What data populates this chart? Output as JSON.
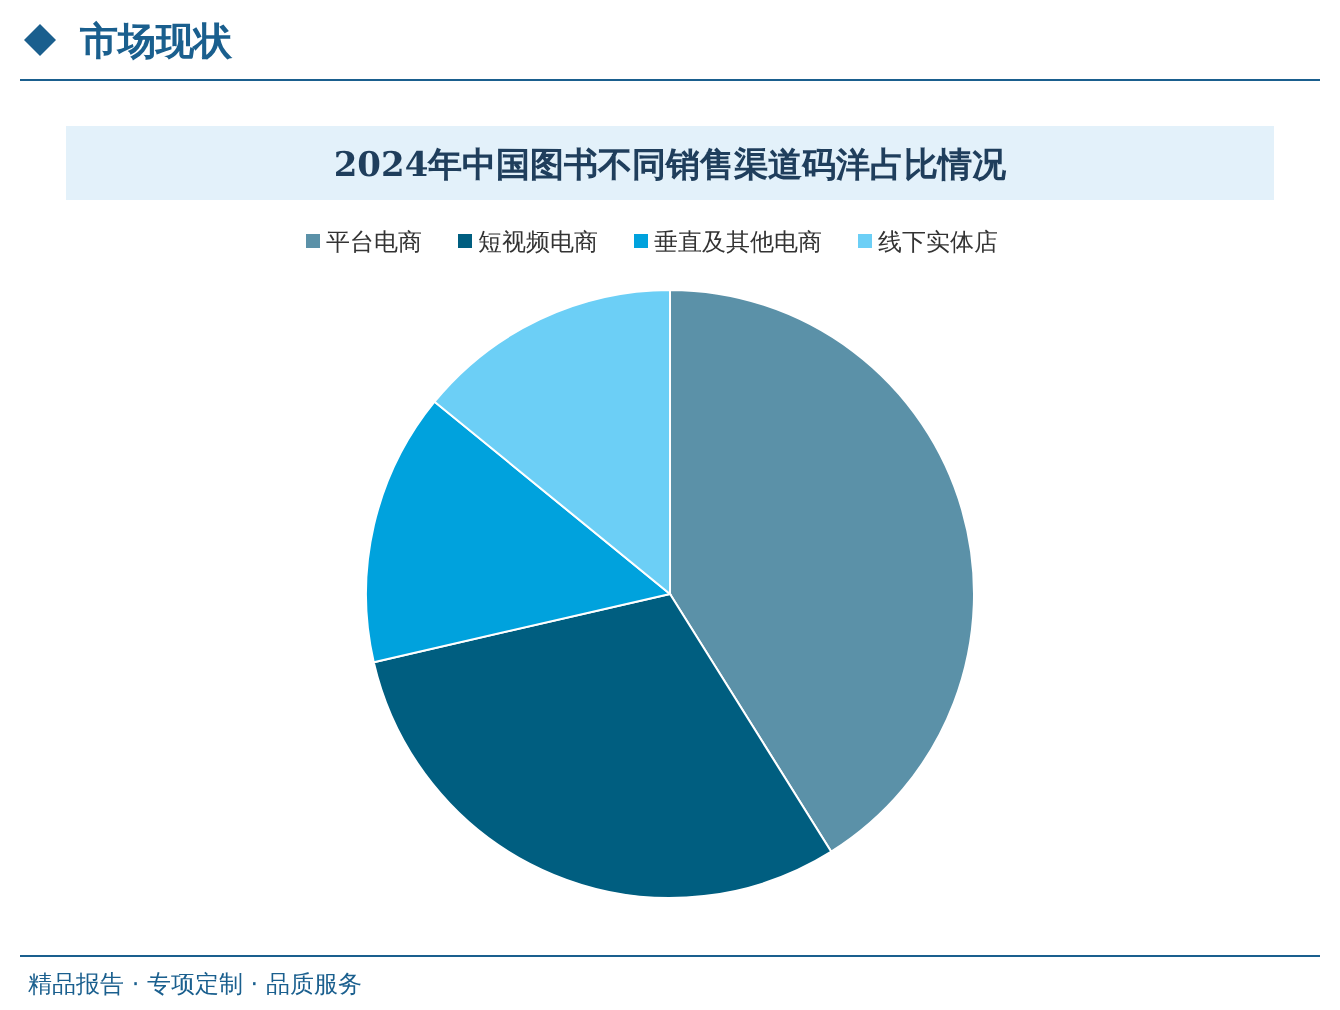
{
  "chart_data": {
    "type": "pie",
    "title": "2024年中国图书不同销售渠道码洋占比情况",
    "categories": [
      "平台电商",
      "短视频电商",
      "垂直及其他电商",
      "线下实体店"
    ],
    "values": [
      41.1,
      30.3,
      14.5,
      14.1
    ],
    "colors": [
      "#5b91a8",
      "#005e80",
      "#00a2dd",
      "#6ccff6"
    ],
    "legend": "top",
    "annotations": [
      "市场现状",
      "精品报告 · 专项定制 · 品质服务"
    ]
  }
}
